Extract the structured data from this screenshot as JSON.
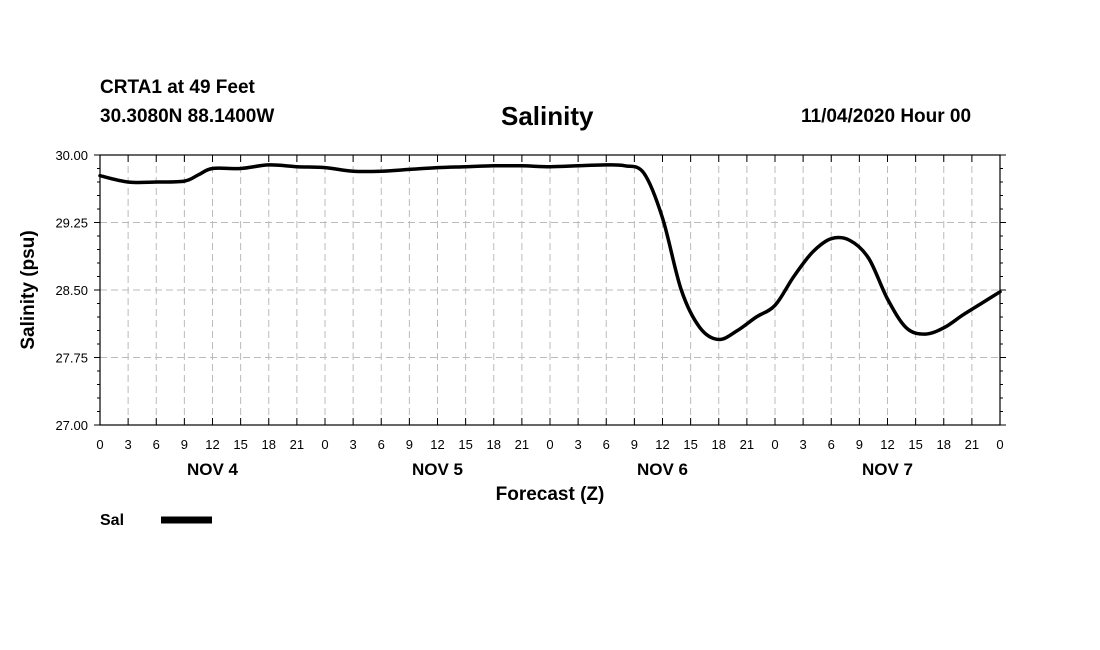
{
  "header": {
    "station": "CRTA1 at 49 Feet",
    "coords": "30.3080N 88.1400W",
    "issued": "11/04/2020 Hour 00"
  },
  "chart_data": {
    "type": "line",
    "title": "Salinity",
    "xlabel": "Forecast (Z)",
    "ylabel": "Salinity (psu)",
    "ylim": [
      27.0,
      30.0
    ],
    "yticks": [
      "27.00",
      "27.75",
      "28.50",
      "29.25",
      "30.00"
    ],
    "x_tick_hours": [
      "0",
      "3",
      "6",
      "9",
      "12",
      "15",
      "18",
      "21",
      "0",
      "3",
      "6",
      "9",
      "12",
      "15",
      "18",
      "21",
      "0",
      "3",
      "6",
      "9",
      "12",
      "15",
      "18",
      "21",
      "0",
      "3",
      "6",
      "9",
      "12",
      "15",
      "18",
      "21",
      "0"
    ],
    "day_labels": [
      "NOV 4",
      "NOV 5",
      "NOV 6",
      "NOV 7"
    ],
    "xlim_hours": [
      0,
      96
    ],
    "grid": true,
    "legend_position": "bottom-left",
    "series": [
      {
        "name": "Sal",
        "color": "#000000",
        "x": [
          0,
          3,
          6,
          9,
          10.5,
          12,
          15,
          18,
          21,
          24,
          27,
          30,
          33,
          36,
          39,
          42,
          45,
          48,
          51,
          54,
          56,
          58,
          60,
          62,
          64,
          66,
          68,
          70,
          72,
          74,
          76,
          78,
          80,
          82,
          84,
          86,
          88,
          90,
          92,
          94,
          96
        ],
        "values": [
          29.77,
          29.7,
          29.7,
          29.71,
          29.78,
          29.85,
          29.85,
          29.89,
          29.87,
          29.86,
          29.82,
          29.82,
          29.84,
          29.86,
          29.87,
          29.88,
          29.88,
          29.87,
          29.88,
          29.89,
          29.88,
          29.8,
          29.3,
          28.5,
          28.08,
          27.95,
          28.05,
          28.2,
          28.33,
          28.65,
          28.92,
          29.07,
          29.05,
          28.85,
          28.4,
          28.08,
          28.01,
          28.08,
          28.22,
          28.35,
          28.48
        ]
      }
    ]
  }
}
